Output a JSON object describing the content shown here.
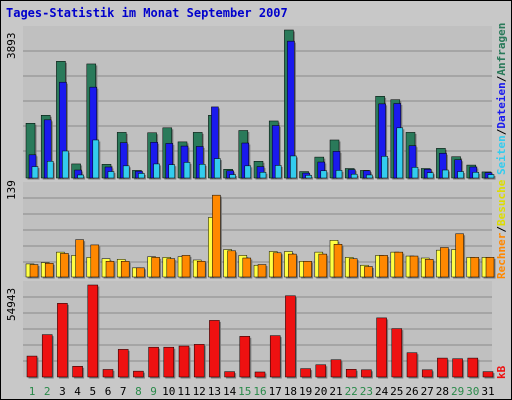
{
  "title": "Tages-Statistik im Monat September 2007",
  "colors": {
    "anfragen": "#2a7a5a",
    "dateien": "#1a1aee",
    "seiten": "#33ccee",
    "besuche": "#ffff44",
    "rechner": "#ff8800",
    "kb": "#ee1111",
    "weekend_label": "#2a8a4a",
    "weekday_label": "#000000",
    "title": "#0000cc"
  },
  "y_labels": {
    "top_right": [
      "Anfragen",
      "Dateien",
      "Seiten"
    ],
    "middle_right": [
      "Besuche",
      "Rechner"
    ],
    "bottom_right": [
      "kB"
    ]
  },
  "chart_data": [
    {
      "type": "bar",
      "name": "top-panel",
      "ymax_label": "3893",
      "ylim": [
        0,
        3893
      ],
      "categories": [
        "1",
        "2",
        "3",
        "4",
        "5",
        "6",
        "7",
        "8",
        "9",
        "10",
        "11",
        "12",
        "13",
        "14",
        "15",
        "16",
        "17",
        "18",
        "19",
        "20",
        "21",
        "22",
        "23",
        "24",
        "25",
        "26",
        "27",
        "28",
        "29",
        "30",
        "31"
      ],
      "series": [
        {
          "name": "Anfragen",
          "values": [
            1440,
            1650,
            3070,
            370,
            3000,
            360,
            1200,
            200,
            1190,
            1320,
            950,
            1200,
            1650,
            230,
            1250,
            440,
            1500,
            3893,
            170,
            550,
            1000,
            250,
            200,
            2150,
            2060,
            1200,
            250,
            780,
            560,
            340,
            160
          ]
        },
        {
          "name": "Dateien",
          "values": [
            610,
            1530,
            2520,
            210,
            2390,
            290,
            930,
            180,
            940,
            910,
            840,
            830,
            1870,
            190,
            920,
            300,
            1380,
            3600,
            130,
            420,
            700,
            220,
            190,
            1950,
            1960,
            850,
            230,
            650,
            480,
            290,
            140
          ]
        },
        {
          "name": "Seiten",
          "values": [
            300,
            440,
            710,
            80,
            1000,
            170,
            320,
            120,
            370,
            350,
            410,
            360,
            510,
            90,
            320,
            150,
            330,
            580,
            70,
            190,
            200,
            100,
            80,
            570,
            1320,
            280,
            140,
            210,
            170,
            150,
            90
          ]
        }
      ]
    },
    {
      "type": "bar",
      "name": "middle-panel",
      "ymax_label": "139",
      "ylim": [
        0,
        139
      ],
      "categories": [
        "1",
        "2",
        "3",
        "4",
        "5",
        "6",
        "7",
        "8",
        "9",
        "10",
        "11",
        "12",
        "13",
        "14",
        "15",
        "16",
        "17",
        "18",
        "19",
        "20",
        "21",
        "22",
        "23",
        "24",
        "25",
        "26",
        "27",
        "28",
        "29",
        "30",
        "31"
      ],
      "series": [
        {
          "name": "Besuche",
          "values": [
            20,
            22,
            38,
            33,
            30,
            28,
            27,
            14,
            31,
            30,
            31,
            26,
            91,
            42,
            33,
            18,
            39,
            39,
            24,
            38,
            56,
            30,
            18,
            33,
            38,
            32,
            29,
            41,
            42,
            30,
            30
          ]
        },
        {
          "name": "Rechner",
          "values": [
            19,
            21,
            36,
            57,
            49,
            24,
            24,
            14,
            30,
            28,
            33,
            24,
            125,
            40,
            29,
            19,
            37,
            35,
            24,
            35,
            50,
            28,
            16,
            33,
            38,
            32,
            27,
            45,
            66,
            30,
            30
          ]
        }
      ]
    },
    {
      "type": "bar",
      "name": "bottom-panel",
      "ymax_label": "54943",
      "ylim": [
        0,
        54943
      ],
      "categories": [
        "1",
        "2",
        "3",
        "4",
        "5",
        "6",
        "7",
        "8",
        "9",
        "10",
        "11",
        "12",
        "13",
        "14",
        "15",
        "16",
        "17",
        "18",
        "19",
        "20",
        "21",
        "22",
        "23",
        "24",
        "25",
        "26",
        "27",
        "28",
        "29",
        "30",
        "31"
      ],
      "series": [
        {
          "name": "kB",
          "values": [
            12500,
            25300,
            44000,
            6400,
            54943,
            4500,
            16500,
            3500,
            17800,
            17800,
            18500,
            19500,
            33800,
            3200,
            24300,
            3000,
            24700,
            48500,
            5000,
            7300,
            10300,
            4600,
            4300,
            35300,
            28900,
            14500,
            4300,
            11300,
            10900,
            11300,
            3200
          ]
        }
      ]
    }
  ],
  "x_labels": [
    "1",
    "2",
    "3",
    "4",
    "5",
    "6",
    "7",
    "8",
    "9",
    "10",
    "11",
    "12",
    "13",
    "14",
    "15",
    "16",
    "17",
    "18",
    "19",
    "20",
    "21",
    "22",
    "23",
    "24",
    "25",
    "26",
    "27",
    "28",
    "29",
    "30",
    "31"
  ],
  "weekend_days": [
    "1",
    "2",
    "8",
    "9",
    "15",
    "16",
    "22",
    "23",
    "29",
    "30"
  ]
}
